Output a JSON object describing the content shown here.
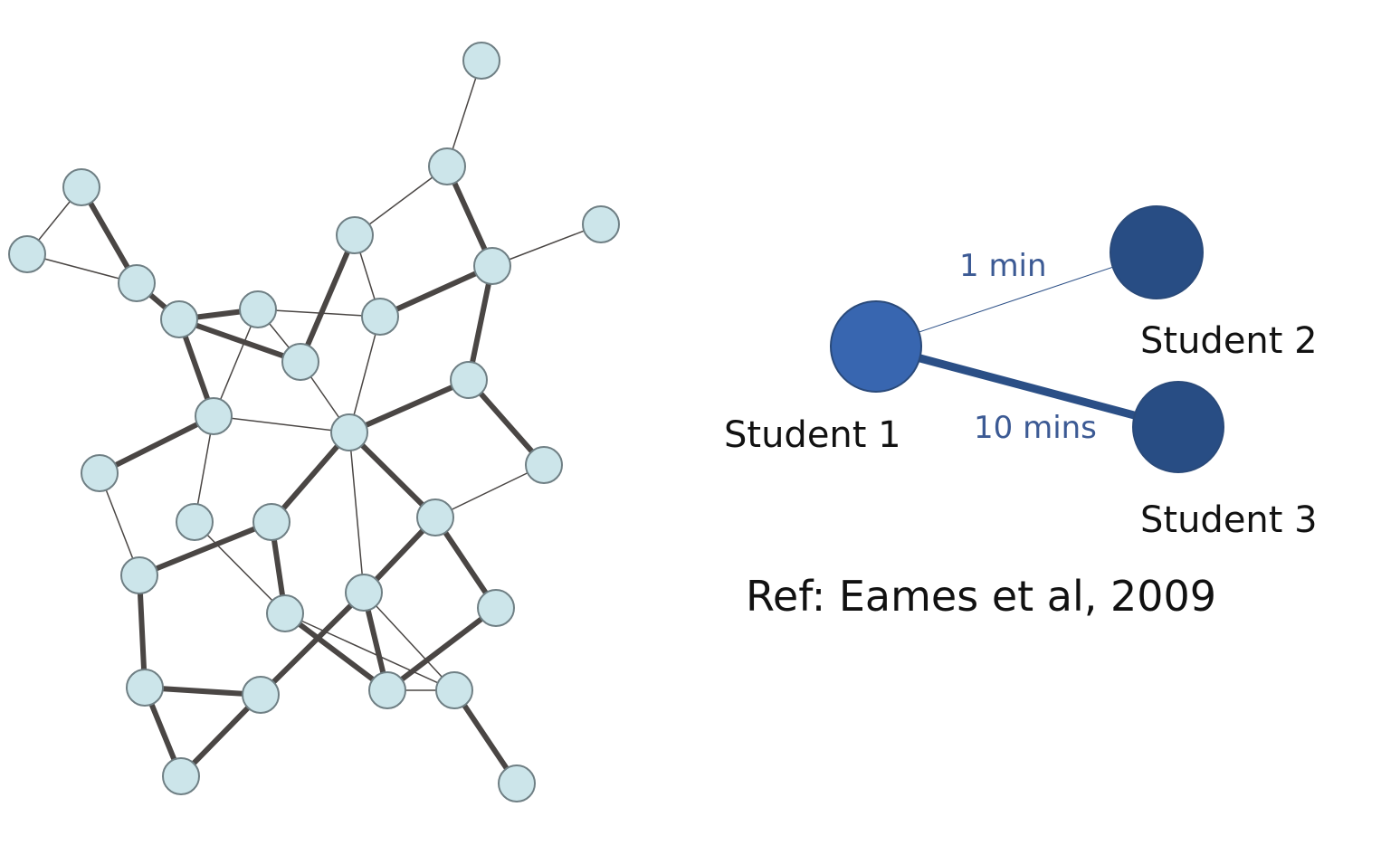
{
  "colors": {
    "background": "#ffffff",
    "network_node_fill": "#cce5ea",
    "network_node_stroke": "#6f7f84",
    "network_edge": "#4a4644",
    "student1_fill": "#3866b0",
    "student_fill": "#284d84",
    "edge_label": "#3c5a94",
    "student_edge": "#2b4f86"
  },
  "network": {
    "nodes": [
      {
        "id": "n1"
      },
      {
        "id": "n2"
      },
      {
        "id": "n3"
      },
      {
        "id": "n4"
      },
      {
        "id": "n5"
      },
      {
        "id": "n6"
      },
      {
        "id": "n7"
      },
      {
        "id": "n8"
      },
      {
        "id": "n9"
      },
      {
        "id": "n10"
      },
      {
        "id": "n11"
      },
      {
        "id": "n12"
      },
      {
        "id": "n13"
      },
      {
        "id": "n14"
      },
      {
        "id": "n15"
      },
      {
        "id": "n16"
      },
      {
        "id": "n17"
      },
      {
        "id": "n18"
      },
      {
        "id": "n19"
      },
      {
        "id": "n20"
      },
      {
        "id": "n21"
      },
      {
        "id": "n22"
      },
      {
        "id": "n23"
      },
      {
        "id": "n24"
      },
      {
        "id": "n25"
      },
      {
        "id": "n26"
      },
      {
        "id": "n27"
      },
      {
        "id": "n28"
      },
      {
        "id": "n29"
      },
      {
        "id": "n30"
      }
    ],
    "edges": [
      {
        "source": "n1",
        "target": "n2",
        "weight": "thin"
      },
      {
        "source": "n2",
        "target": "n3",
        "weight": "thin"
      },
      {
        "source": "n3",
        "target": "n5",
        "weight": "thin"
      },
      {
        "source": "n2",
        "target": "n7",
        "weight": "thick"
      },
      {
        "source": "n3",
        "target": "n8",
        "weight": "thick"
      },
      {
        "source": "n4",
        "target": "n8",
        "weight": "thin"
      },
      {
        "source": "n5",
        "target": "n12",
        "weight": "thin"
      },
      {
        "source": "n5",
        "target": "n11",
        "weight": "thick"
      },
      {
        "source": "n6",
        "target": "n7",
        "weight": "thin"
      },
      {
        "source": "n6",
        "target": "n9",
        "weight": "thin"
      },
      {
        "source": "n7",
        "target": "n10",
        "weight": "thick"
      },
      {
        "source": "n9",
        "target": "n10",
        "weight": "thick"
      },
      {
        "source": "n9",
        "target": "n12",
        "weight": "thin"
      },
      {
        "source": "n9",
        "target": "n11",
        "weight": "thin"
      },
      {
        "source": "n9",
        "target": "n13",
        "weight": "thick"
      },
      {
        "source": "n10",
        "target": "n12",
        "weight": "thin"
      },
      {
        "source": "n10",
        "target": "n14",
        "weight": "thick"
      },
      {
        "source": "n10",
        "target": "n13",
        "weight": "thin"
      },
      {
        "source": "n8",
        "target": "n11",
        "weight": "thick"
      },
      {
        "source": "n8",
        "target": "n15",
        "weight": "thick"
      },
      {
        "source": "n11",
        "target": "n15",
        "weight": "thick"
      },
      {
        "source": "n12",
        "target": "n15",
        "weight": "thin"
      },
      {
        "source": "n13",
        "target": "n15",
        "weight": "thin"
      },
      {
        "source": "n13",
        "target": "n16",
        "weight": "thick"
      },
      {
        "source": "n14",
        "target": "n17",
        "weight": "thick"
      },
      {
        "source": "n14",
        "target": "n19",
        "weight": "thick"
      },
      {
        "source": "n14",
        "target": "n18",
        "weight": "thin"
      },
      {
        "source": "n15",
        "target": "n21",
        "weight": "thick"
      },
      {
        "source": "n15",
        "target": "n18",
        "weight": "thin"
      },
      {
        "source": "n15",
        "target": "n22",
        "weight": "thin"
      },
      {
        "source": "n15",
        "target": "n20",
        "weight": "thick"
      },
      {
        "source": "n16",
        "target": "n21",
        "weight": "thick"
      },
      {
        "source": "n17",
        "target": "n20",
        "weight": "thin"
      },
      {
        "source": "n19",
        "target": "n21",
        "weight": "thick"
      },
      {
        "source": "n19",
        "target": "n25",
        "weight": "thick"
      },
      {
        "source": "n21",
        "target": "n24",
        "weight": "thick"
      },
      {
        "source": "n18",
        "target": "n23",
        "weight": "thin"
      },
      {
        "source": "n20",
        "target": "n26",
        "weight": "thick"
      },
      {
        "source": "n21",
        "target": "n22",
        "weight": "thick"
      },
      {
        "source": "n22",
        "target": "n24",
        "weight": "thick"
      },
      {
        "source": "n22",
        "target": "n27",
        "weight": "thick"
      },
      {
        "source": "n20",
        "target": "n28",
        "weight": "thick"
      },
      {
        "source": "n23",
        "target": "n27",
        "weight": "thin"
      },
      {
        "source": "n24",
        "target": "n27",
        "weight": "thick"
      },
      {
        "source": "n24",
        "target": "n29",
        "weight": "thick"
      },
      {
        "source": "n25",
        "target": "n29",
        "weight": "thick"
      },
      {
        "source": "n25",
        "target": "n30",
        "weight": "thick"
      },
      {
        "source": "n26",
        "target": "n28",
        "weight": "thin"
      },
      {
        "source": "n28",
        "target": "n29",
        "weight": "thin"
      },
      {
        "source": "n30",
        "target": "n29",
        "weight": "thick"
      }
    ]
  },
  "students": {
    "student1": {
      "label": "Student 1"
    },
    "student2": {
      "label": "Student 2"
    },
    "student3": {
      "label": "Student 3"
    }
  },
  "links": {
    "student1_student2": {
      "label": "1 min",
      "weight": "thin"
    },
    "student1_student3": {
      "label": "10 mins",
      "weight": "thick"
    }
  },
  "reference": {
    "text": "Ref: Eames et al, 2009"
  }
}
